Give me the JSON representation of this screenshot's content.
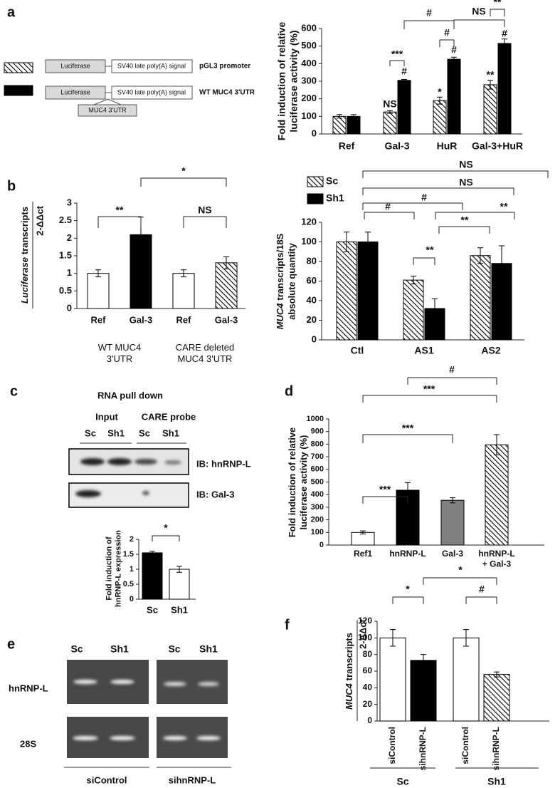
{
  "panel_labels": [
    "a",
    "b",
    "c",
    "d",
    "e",
    "f"
  ],
  "diagram_a": {
    "constructs": [
      {
        "reporter": "Luciferase",
        "signal": "SV40 late poly(A) signal"
      },
      {
        "reporter": "Luciferase",
        "signal": "SV40 late poly(A) signal",
        "insert": "MUC4 3'UTR"
      }
    ]
  },
  "blot_c": {
    "title": "RNA pull down",
    "groups": [
      "Input",
      "CARE probe"
    ],
    "lanes": [
      "Sc",
      "Sh1",
      "Sc",
      "Sh1"
    ],
    "blots": [
      "IB: hnRNP-L",
      "IB: Gal-3"
    ]
  },
  "gel_e": {
    "lanes": [
      "Sc",
      "Sh1",
      "Sc",
      "Sh1"
    ],
    "rows": [
      "hnRNP-L",
      "28S"
    ],
    "groups": [
      "siControl",
      "sihnRNP-L"
    ]
  },
  "chart_data": [
    {
      "type": "bar",
      "ylabel": "Fold induction of relative\nluciferase activity (%)",
      "categories": [
        "Ref",
        "Gal-3",
        "HuR",
        "Gal-3+HuR"
      ],
      "series": [
        {
          "name": "pGL3 promoter",
          "color": "#000000",
          "hatched": true,
          "values": [
            100,
            125,
            190,
            280
          ],
          "errors": [
            10,
            8,
            20,
            25
          ]
        },
        {
          "name": "WT MUC4 3'UTR",
          "color": "#000000",
          "hatched": false,
          "values": [
            100,
            305,
            425,
            515
          ],
          "errors": [
            10,
            5,
            12,
            25
          ]
        }
      ],
      "ylim": [
        0,
        600
      ],
      "yticks": [
        0,
        100,
        200,
        300,
        400,
        500,
        600
      ],
      "annotations": [
        "NS",
        "*",
        "**",
        "#",
        "#",
        "#",
        "***",
        "#",
        "#",
        "NS",
        "**"
      ]
    },
    {
      "type": "bar",
      "ylabel": {
        "italic": "Luciferase",
        "rest": "transcripts"
      },
      "ylabel2": "2-ΔΔct",
      "categories": [
        "Ref",
        "Gal-3",
        "Ref",
        "Gal-3"
      ],
      "values": [
        1,
        2.1,
        1,
        1.3
      ],
      "errors": [
        0.1,
        0.5,
        0.1,
        0.17
      ],
      "colors": [
        "#ffffff",
        "#000000",
        "#ffffff",
        "#000000"
      ],
      "hatched": [
        false,
        false,
        false,
        true
      ],
      "ylim": [
        0,
        3
      ],
      "yticks": [
        0,
        0.5,
        1,
        1.5,
        2,
        2.5,
        3
      ],
      "group_labels": [
        "WT MUC4\n3'UTR",
        "CARE deleted\nMUC4 3'UTR"
      ],
      "annotations": [
        "**",
        "NS",
        "*"
      ]
    },
    {
      "type": "bar",
      "ylabel": {
        "italic": "MUC4",
        "rest": "transcripts/18S"
      },
      "ylabel2": "absolute quantity",
      "categories": [
        "Ctl",
        "AS1",
        "AS2"
      ],
      "series": [
        {
          "name": "Sc",
          "color": "#000000",
          "hatched": true,
          "values": [
            100,
            61,
            86
          ],
          "errors": [
            10,
            4,
            8
          ]
        },
        {
          "name": "Sh1",
          "color": "#000000",
          "hatched": false,
          "values": [
            100,
            32,
            78
          ],
          "errors": [
            10,
            10,
            18
          ]
        }
      ],
      "ylim": [
        0,
        120
      ],
      "yticks": [
        0,
        20,
        40,
        60,
        80,
        100,
        120
      ],
      "annotations": [
        "NS",
        "NS",
        "#",
        "#",
        "**",
        "**",
        "**"
      ]
    },
    {
      "type": "bar",
      "ylabel": "Fold induction of\nhnRNP-L expression",
      "categories": [
        "Sc",
        "Sh1"
      ],
      "values": [
        1.55,
        1.0
      ],
      "errors": [
        0.05,
        0.1
      ],
      "colors": [
        "#000000",
        "#ffffff"
      ],
      "hatched": [
        false,
        false
      ],
      "ylim": [
        0,
        2
      ],
      "yticks": [
        0,
        0.5,
        1,
        1.5,
        2
      ],
      "annotations": [
        "*"
      ]
    },
    {
      "type": "bar",
      "ylabel": "Fold induction of relative\nluciferase activity (%)",
      "categories": [
        "Ref1",
        "hnRNP-L",
        "Gal-3",
        "hnRNP-L\n+ Gal-3"
      ],
      "values": [
        100,
        435,
        355,
        795
      ],
      "errors": [
        12,
        60,
        20,
        80
      ],
      "colors": [
        "#ffffff",
        "#000000",
        "#808080",
        "#000000"
      ],
      "hatched": [
        false,
        false,
        false,
        true
      ],
      "ylim": [
        0,
        1000
      ],
      "yticks": [
        0,
        100,
        200,
        300,
        400,
        500,
        600,
        700,
        800,
        900,
        1000
      ],
      "annotations": [
        "***",
        "***",
        "***",
        "#"
      ]
    },
    {
      "type": "bar",
      "ylabel": {
        "italic": "MUC4",
        "rest": "transcripts"
      },
      "ylabel2": "2-ΔΔct",
      "categories": [
        "siControl",
        "sihnRNP-L",
        "siControl",
        "sihnRNP-L"
      ],
      "values": [
        100,
        73,
        100,
        56
      ],
      "errors": [
        10,
        7,
        10,
        3
      ],
      "colors": [
        "#ffffff",
        "#000000",
        "#ffffff",
        "#000000"
      ],
      "hatched": [
        false,
        false,
        false,
        true
      ],
      "ylim": [
        0,
        120
      ],
      "yticks": [
        0,
        20,
        40,
        60,
        80,
        100,
        120
      ],
      "group_labels": [
        "Sc",
        "Sh1"
      ],
      "annotations": [
        "*",
        "*",
        "#"
      ]
    }
  ]
}
